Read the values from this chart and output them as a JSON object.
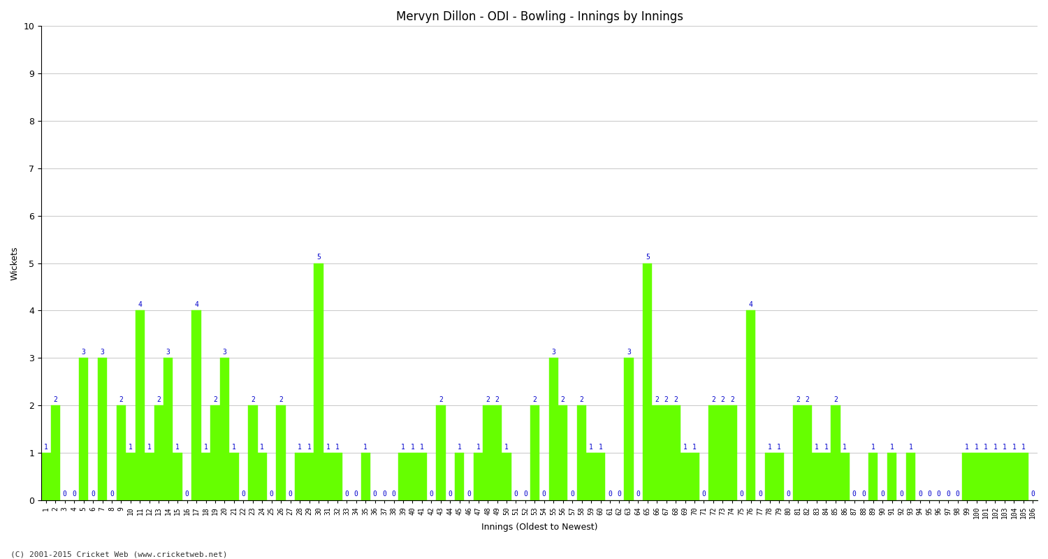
{
  "title": "Mervyn Dillon - ODI - Bowling - Innings by Innings",
  "xlabel": "Innings (Oldest to Newest)",
  "ylabel": "Wickets",
  "ylim": [
    0,
    10
  ],
  "yticks": [
    0,
    1,
    2,
    3,
    4,
    5,
    6,
    7,
    8,
    9,
    10
  ],
  "bar_color": "#66ff00",
  "bar_edge_color": "#66ff00",
  "label_color": "#0000cc",
  "background_color": "#ffffff",
  "grid_color": "#cccccc",
  "footnote": "(C) 2001-2015 Cricket Web (www.cricketweb.net)",
  "wickets": [
    1,
    2,
    0,
    0,
    3,
    0,
    3,
    0,
    2,
    1,
    4,
    1,
    2,
    3,
    1,
    0,
    4,
    1,
    2,
    3,
    1,
    0,
    2,
    1,
    0,
    2,
    0,
    1,
    1,
    5,
    1,
    1,
    0,
    0,
    1,
    0,
    0,
    0,
    1,
    1,
    1,
    0,
    2,
    0,
    1,
    0,
    1,
    2,
    2,
    1,
    0,
    0,
    2,
    0,
    3,
    2,
    0,
    2,
    1,
    1,
    0,
    0,
    3,
    0,
    5,
    2,
    2,
    2,
    1,
    1,
    0,
    2,
    2,
    2,
    0,
    4,
    0,
    1,
    1,
    0,
    2,
    2,
    1,
    1,
    2,
    1,
    0,
    0,
    1,
    0,
    1,
    0,
    1,
    0,
    0,
    0,
    0,
    0,
    1,
    1,
    1,
    1,
    1,
    1,
    1,
    0
  ],
  "title_fontsize": 12,
  "axis_fontsize": 9,
  "tick_fontsize": 7,
  "label_fontsize": 7
}
